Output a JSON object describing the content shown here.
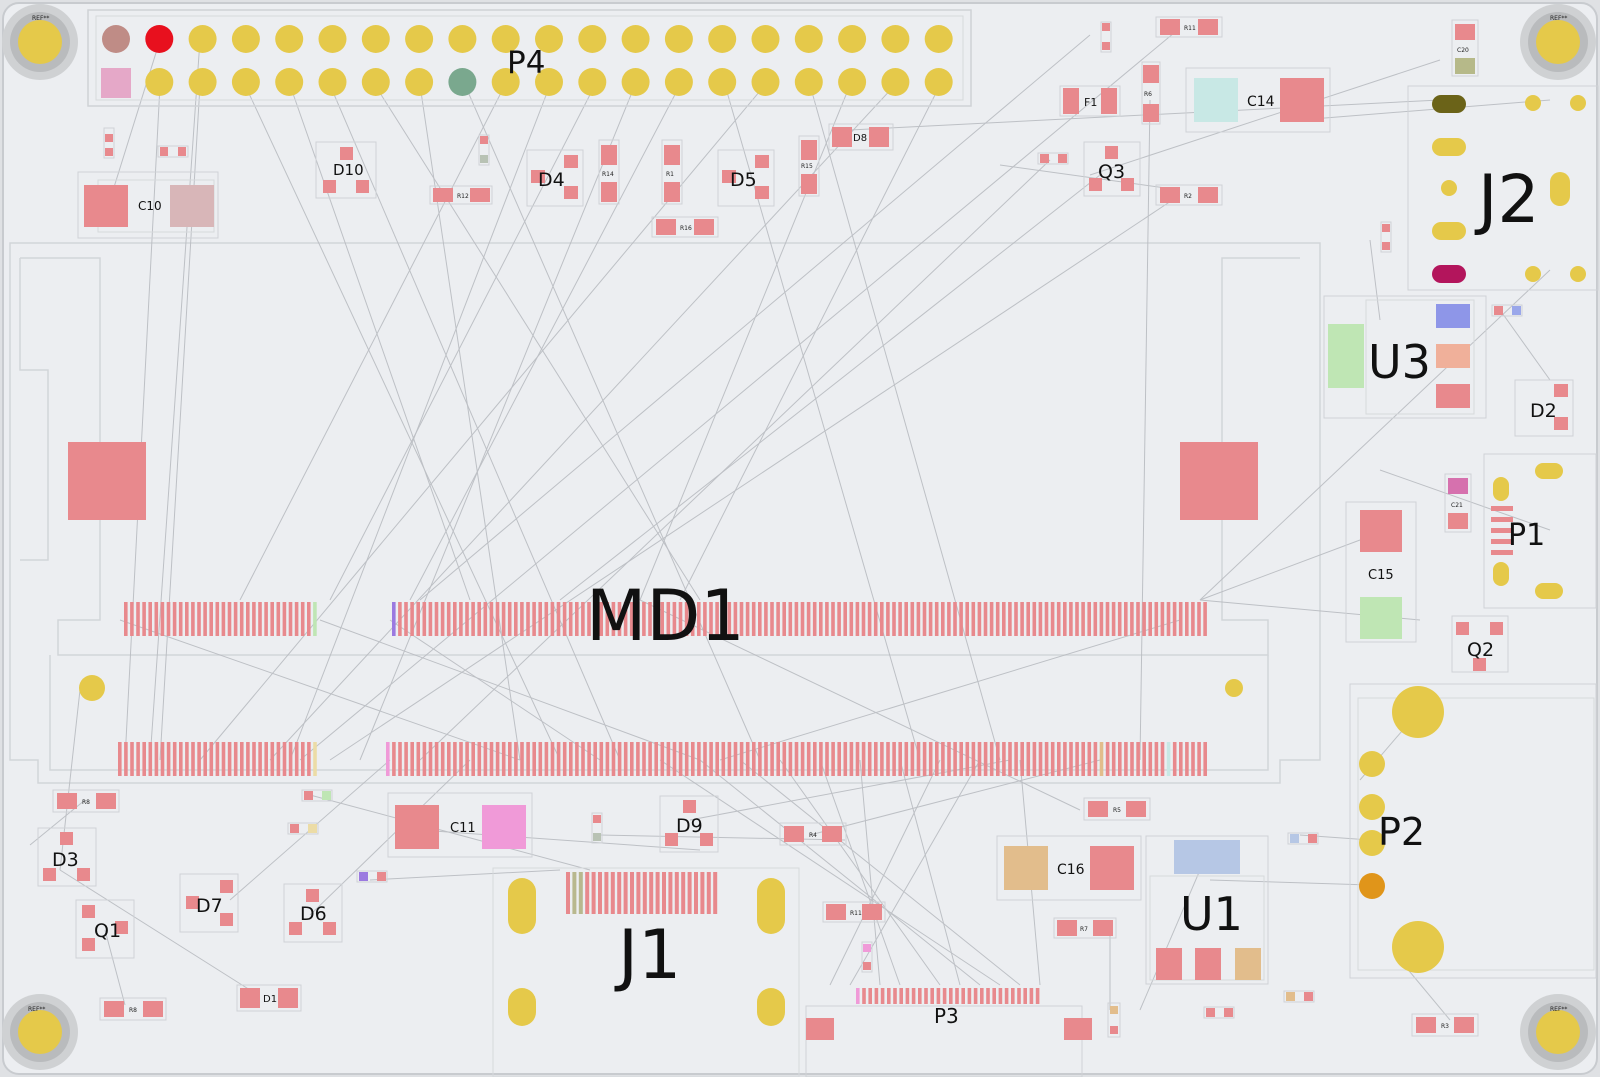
{
  "board": {
    "colors": {
      "board": "#eceef1",
      "outline": "#c8cbcf",
      "pad": "#e8898d",
      "gold": "#e5c94a",
      "mount": "#cfd1d3",
      "trace": "#b9bcc1"
    },
    "mounting_holes": [
      "REF**",
      "REF**",
      "REF**",
      "REF**"
    ],
    "labels": {
      "MD1": "MD1",
      "J1": "J1",
      "J2": "J2",
      "U1": "U1",
      "U3": "U3",
      "P1": "P1",
      "P2": "P2",
      "P3": "P3",
      "P4": "P4",
      "C10": "C10",
      "C11": "C11",
      "C14": "C14",
      "C15": "C15",
      "C16": "C16",
      "D1": "D1",
      "D2": "D2",
      "D3": "D3",
      "D4": "D4",
      "D5": "D5",
      "D6": "D6",
      "D7": "D7",
      "D8": "D8",
      "D9": "D9",
      "D10": "D10",
      "Q1": "Q1",
      "Q2": "Q2",
      "Q3": "Q3",
      "F1": "F1",
      "C20": "C20",
      "C21": "C21",
      "R1": "R1",
      "R2": "R2",
      "R3": "R3",
      "R4": "R4",
      "R5": "R5",
      "R6": "R6",
      "R7": "R7",
      "R8": "R8",
      "R11": "R11",
      "R12": "R12",
      "R14": "R14",
      "R15": "R15",
      "R16": "R16"
    }
  }
}
